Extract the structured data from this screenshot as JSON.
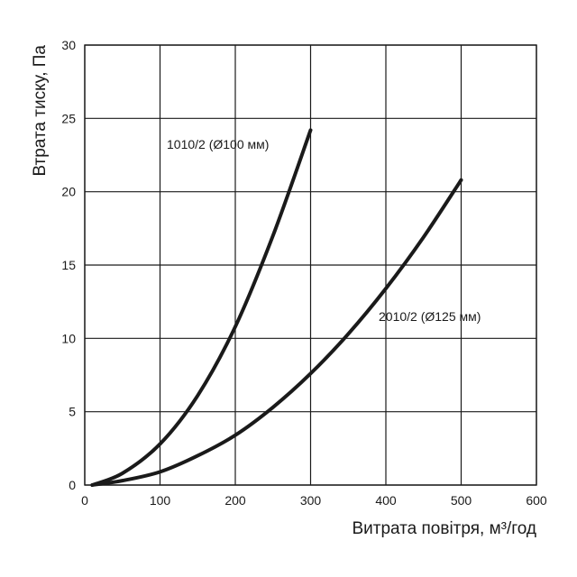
{
  "chart_data": {
    "type": "line",
    "xlabel": "Витрата повітря, м³/год",
    "ylabel": "Втрата тиску, Па",
    "xlim": [
      0,
      600
    ],
    "ylim": [
      0,
      30
    ],
    "x_ticks": [
      "0",
      "100",
      "200",
      "300",
      "400",
      "500",
      "600"
    ],
    "y_ticks": [
      "0",
      "5",
      "10",
      "15",
      "20",
      "25",
      "30"
    ],
    "grid": true,
    "series": [
      {
        "name": "1010/2 (Ø100 мм)",
        "x": [
          10,
          50,
          100,
          150,
          200,
          250,
          300
        ],
        "y": [
          0,
          0.8,
          2.8,
          6.1,
          10.8,
          17.0,
          24.2
        ]
      },
      {
        "name": "2010/2 (Ø125 мм)",
        "x": [
          10,
          50,
          100,
          150,
          200,
          250,
          300,
          350,
          400,
          450,
          500
        ],
        "y": [
          0,
          0.3,
          0.9,
          2.0,
          3.4,
          5.3,
          7.6,
          10.3,
          13.4,
          16.9,
          20.8
        ]
      }
    ]
  }
}
